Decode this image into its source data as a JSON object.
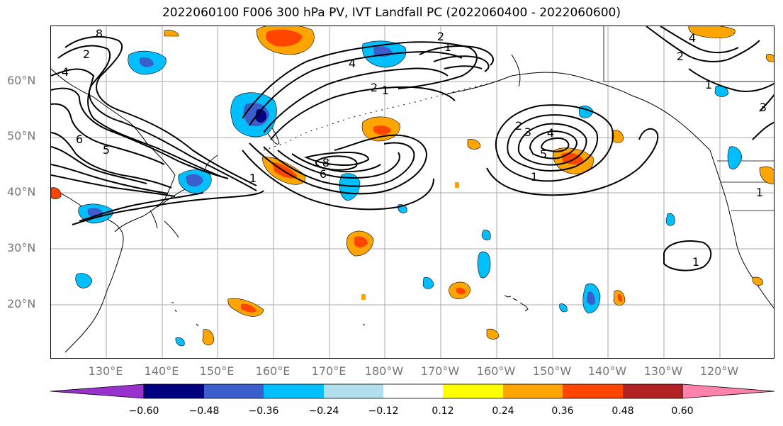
{
  "title": "2022060100 F006 300 hPa PV, IVT Landfall PC (2022060400 - 2022060600)",
  "lat_labels": [
    "60°N",
    "50°N",
    "40°N",
    "30°N",
    "20°N"
  ],
  "lon_labels": [
    "130°E",
    "140°E",
    "150°E",
    "160°E",
    "170°E",
    "180°W",
    "170°W",
    "160°W",
    "150°W",
    "140°W",
    "130°W",
    "120°W"
  ],
  "colorbar": {
    "colors": [
      "#9932cc",
      "#000080",
      "#3a5fcd",
      "#00bfff",
      "#b2dfee",
      "#ffffff",
      "#ffff00",
      "#ffa500",
      "#ff4500",
      "#b22222",
      "#ff82ab"
    ],
    "tick_labels": [
      "−0.60",
      "−0.48",
      "−0.36",
      "−0.24",
      "−0.12",
      "0.12",
      "0.24",
      "0.36",
      "0.48",
      "0.60"
    ]
  },
  "contour_labels": [
    "8",
    "2",
    "4",
    "6",
    "5",
    "1",
    "2",
    "1",
    "8",
    "6",
    "4",
    "2",
    "5",
    "4",
    "3",
    "2",
    "1",
    "1",
    "1",
    "2",
    "4",
    "3",
    "1",
    "1"
  ]
}
